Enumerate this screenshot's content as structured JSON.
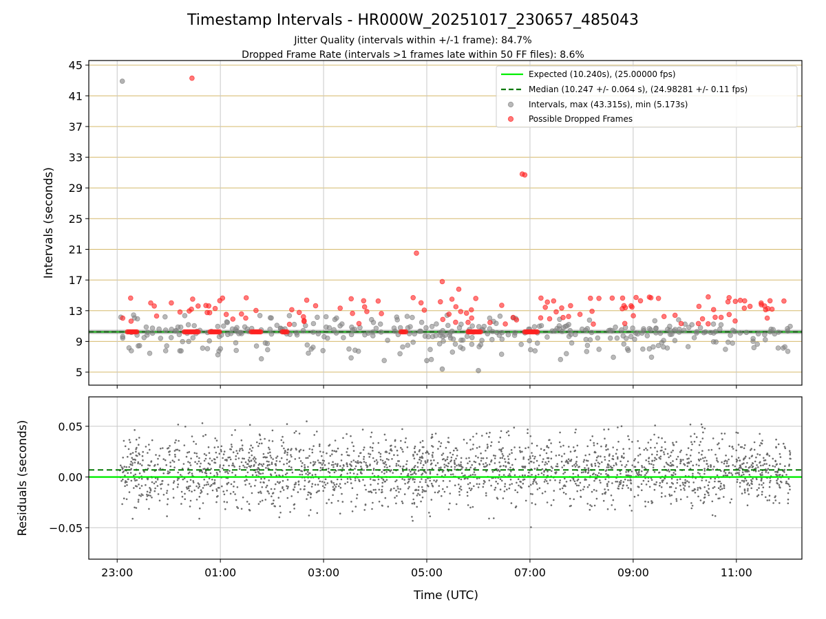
{
  "figure": {
    "title": "Timestamp Intervals - HR000W_20251017_230657_485043",
    "subtitle_jitter": "Jitter Quality (intervals within +/-1 frame): 84.7%",
    "subtitle_dropped": "Dropped Frame Rate (intervals >1 frames late within 50 FF files): 8.6%",
    "xlabel": "Time (UTC)"
  },
  "colors": {
    "expected": "#00ee00",
    "median": "#007700",
    "intervals": "#808080",
    "dropped": "#ff2020",
    "hgrid": "#d4b86a",
    "vgrid": "#c8c8c8"
  },
  "chart_data": [
    {
      "type": "scatter",
      "name": "intervals",
      "ylabel": "Intervals (seconds)",
      "ylim": [
        3.3,
        45.6
      ],
      "yticks": [
        "5",
        "9",
        "13",
        "17",
        "21",
        "25",
        "29",
        "33",
        "37",
        "41",
        "45"
      ],
      "x_range_hours": [
        -1.55,
        12.27
      ],
      "xticks": [
        "23:00",
        "01:00",
        "03:00",
        "05:00",
        "07:00",
        "09:00",
        "11:00"
      ],
      "expected_interval_s": 10.24,
      "median_interval_s": 10.247,
      "legend": {
        "expected": "Expected (10.240s), (25.00000 fps)",
        "median": "Median (10.247 +/- 0.064 s), (24.98281 +/- 0.11 fps)",
        "intervals": "Intervals, max (43.315s), min (5.173s)",
        "dropped": "Possible Dropped Frames"
      },
      "highlighted_points": [
        {
          "series": "intervals",
          "x_hours": -0.9,
          "y": 42.9
        },
        {
          "series": "dropped",
          "x_hours": 0.45,
          "y": 43.3
        },
        {
          "series": "dropped",
          "x_hours": 6.85,
          "y": 30.8
        },
        {
          "series": "dropped",
          "x_hours": 6.9,
          "y": 30.7
        },
        {
          "series": "dropped",
          "x_hours": 4.8,
          "y": 20.5
        },
        {
          "series": "dropped",
          "x_hours": 5.3,
          "y": 16.8
        },
        {
          "series": "dropped",
          "x_hours": 5.62,
          "y": 15.8
        },
        {
          "series": "dropped",
          "x_hours": 5.95,
          "y": 14.6
        },
        {
          "series": "intervals",
          "x_hours": 5.0,
          "y": 6.5
        },
        {
          "series": "intervals",
          "x_hours": 6.0,
          "y": 5.2
        },
        {
          "series": "intervals",
          "x_hours": 5.3,
          "y": 5.4
        }
      ]
    },
    {
      "type": "scatter",
      "name": "residuals",
      "ylabel": "Residuals (seconds)",
      "ylim": [
        -0.081,
        0.079
      ],
      "yticks": [
        "−0.05",
        "0.00",
        "0.05"
      ],
      "ytick_values": [
        -0.05,
        0.0,
        0.05
      ],
      "median_residual_s": 0.007,
      "expected_residual_s": 0.0,
      "spread_s": 0.025
    }
  ]
}
